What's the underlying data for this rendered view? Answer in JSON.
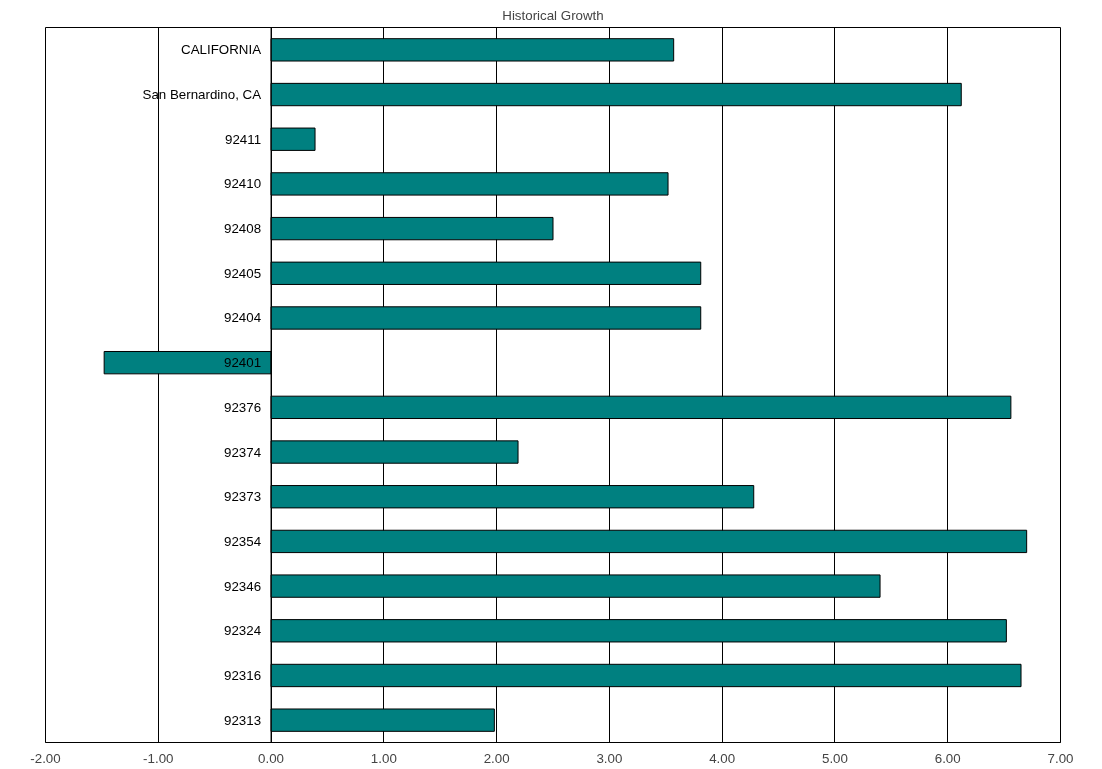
{
  "chart_data": {
    "type": "bar",
    "orientation": "horizontal",
    "title": "Historical Growth",
    "categories": [
      "CALIFORNIA",
      "San Bernardino, CA",
      "92411",
      "92410",
      "92408",
      "92405",
      "92404",
      "92401",
      "92376",
      "92374",
      "92373",
      "92354",
      "92346",
      "92324",
      "92316",
      "92313"
    ],
    "values": [
      3.57,
      6.12,
      0.39,
      3.52,
      2.5,
      3.81,
      3.81,
      -1.48,
      6.56,
      2.19,
      4.28,
      6.7,
      5.4,
      6.52,
      6.65,
      1.98
    ],
    "color": "#008080",
    "xlim": [
      -2,
      7
    ],
    "xticks": [
      {
        "value": -2,
        "label": "-2.00"
      },
      {
        "value": -1,
        "label": "-1.00"
      },
      {
        "value": 0,
        "label": "0.00"
      },
      {
        "value": 1,
        "label": "1.00"
      },
      {
        "value": 2,
        "label": "2.00"
      },
      {
        "value": 3,
        "label": "3.00"
      },
      {
        "value": 4,
        "label": "4.00"
      },
      {
        "value": 5,
        "label": "5.00"
      },
      {
        "value": 6,
        "label": "6.00"
      },
      {
        "value": 7,
        "label": "7.00"
      }
    ],
    "grid": "x"
  }
}
